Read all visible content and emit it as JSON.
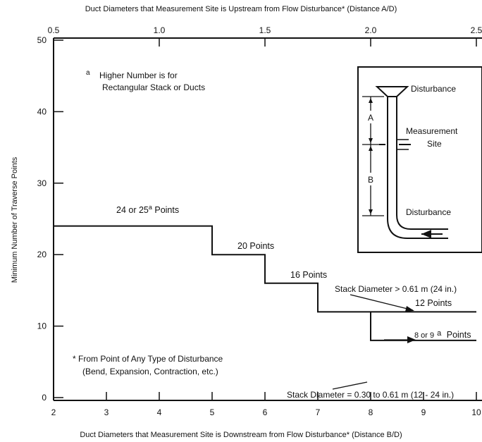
{
  "chart_data": {
    "type": "line",
    "title": "",
    "xlabel": "Duct Diameters that Measurement Site is Downstream from Flow Disturbance* (Distance B/D)",
    "x2label": "Duct Diameters that Measurement Site is Upstream from Flow Disturbance* (Distance A/D)",
    "ylabel": "Minimum Number of  Traverse Points",
    "xlim": [
      2,
      10
    ],
    "x2lim": [
      0.5,
      2.5
    ],
    "ylim": [
      0,
      50
    ],
    "x_ticks": [
      "2",
      "3",
      "4",
      "5",
      "6",
      "7",
      "8",
      "9",
      "10"
    ],
    "x2_ticks": [
      "0.5",
      "1.0",
      "1.5",
      "2.0",
      "2.5"
    ],
    "y_ticks": [
      "0",
      "10",
      "20",
      "30",
      "40",
      "50"
    ],
    "grid": false,
    "series": [
      {
        "name": "Stack Diameter > 0.61 m (24 in.)",
        "x": [
          2,
          5,
          5,
          6,
          6,
          7,
          7,
          10
        ],
        "y": [
          24,
          24,
          20,
          20,
          16,
          16,
          12,
          12
        ]
      },
      {
        "name": "Stack Diameter = 0.30 to 0.61 m (12 - 24 in.)",
        "x": [
          8,
          8,
          10
        ],
        "y": [
          12,
          8,
          8
        ]
      }
    ],
    "annotations": {
      "step_24": "24 or 25",
      "step_24_sup": "a",
      "step_24_suffix": " Points",
      "step_20": "20 Points",
      "step_16": "16 Points",
      "step_12": "12 Points",
      "step_8": "8 or 9",
      "step_8_sup": "a",
      "step_8_suffix": " Points",
      "stack_large": "Stack Diameter > 0.61 m (24 in.)",
      "stack_small": "Stack Diameter = 0.30 to 0.61 m (12 - 24 in.)",
      "note_a_mark": "a",
      "note_a_line1": "Higher Number is for",
      "note_a_line2": "Rectangular Stack or Ducts",
      "note_star_line1": "* From Point of Any Type of Disturbance",
      "note_star_line2": "(Bend, Expansion, Contraction, etc.)"
    },
    "inset": {
      "disturbance_top": "Disturbance",
      "measurement_line1": "Measurement",
      "measurement_line2": "Site",
      "disturbance_bottom": "Disturbance",
      "label_a": "A",
      "label_b": "B"
    }
  }
}
